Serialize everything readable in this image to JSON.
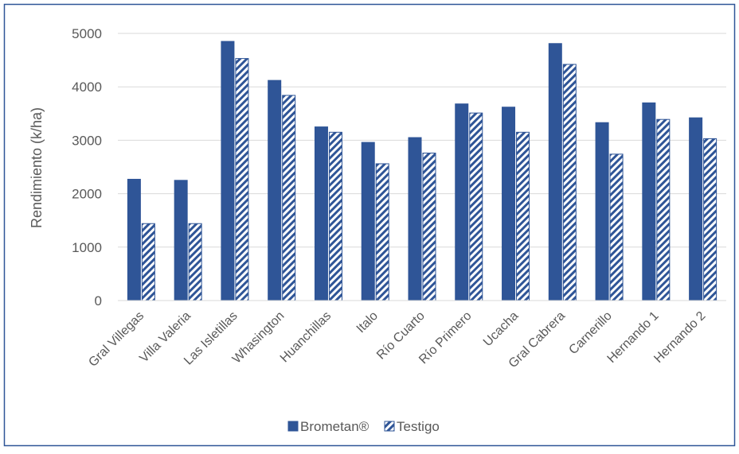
{
  "chart_data": {
    "type": "bar",
    "title": "",
    "xlabel": "",
    "ylabel": "Rendimiento (k/ha)",
    "ylim": [
      0,
      5000
    ],
    "yticks": [
      0,
      1000,
      2000,
      3000,
      4000,
      5000
    ],
    "grid": true,
    "legend_position": "bottom",
    "categories": [
      "Gral Villegas",
      "Villa Valeria",
      "Las Isletillas",
      "Whasington",
      "Huanchillas",
      "Italo",
      "Río Cuarto",
      "Río Primero",
      "Ucacha",
      "Gral Cabrera",
      "Carnerillo",
      "Hernando 1",
      "Hernando 2"
    ],
    "series": [
      {
        "name": "Brometan®",
        "values": [
          2270,
          2250,
          4850,
          4120,
          3250,
          2960,
          3050,
          3680,
          3620,
          4810,
          3330,
          3700,
          3420
        ],
        "color": "#2f5597",
        "pattern": "solid"
      },
      {
        "name": "Testigo",
        "values": [
          1440,
          1440,
          4530,
          3840,
          3150,
          2560,
          2760,
          3510,
          3150,
          4420,
          2740,
          3390,
          3030
        ],
        "color": "#2f5597",
        "pattern": "diagonal-hatch"
      }
    ]
  },
  "colors": {
    "border": "#2f5597",
    "grid": "#d9d9d9",
    "text": "#595959"
  }
}
